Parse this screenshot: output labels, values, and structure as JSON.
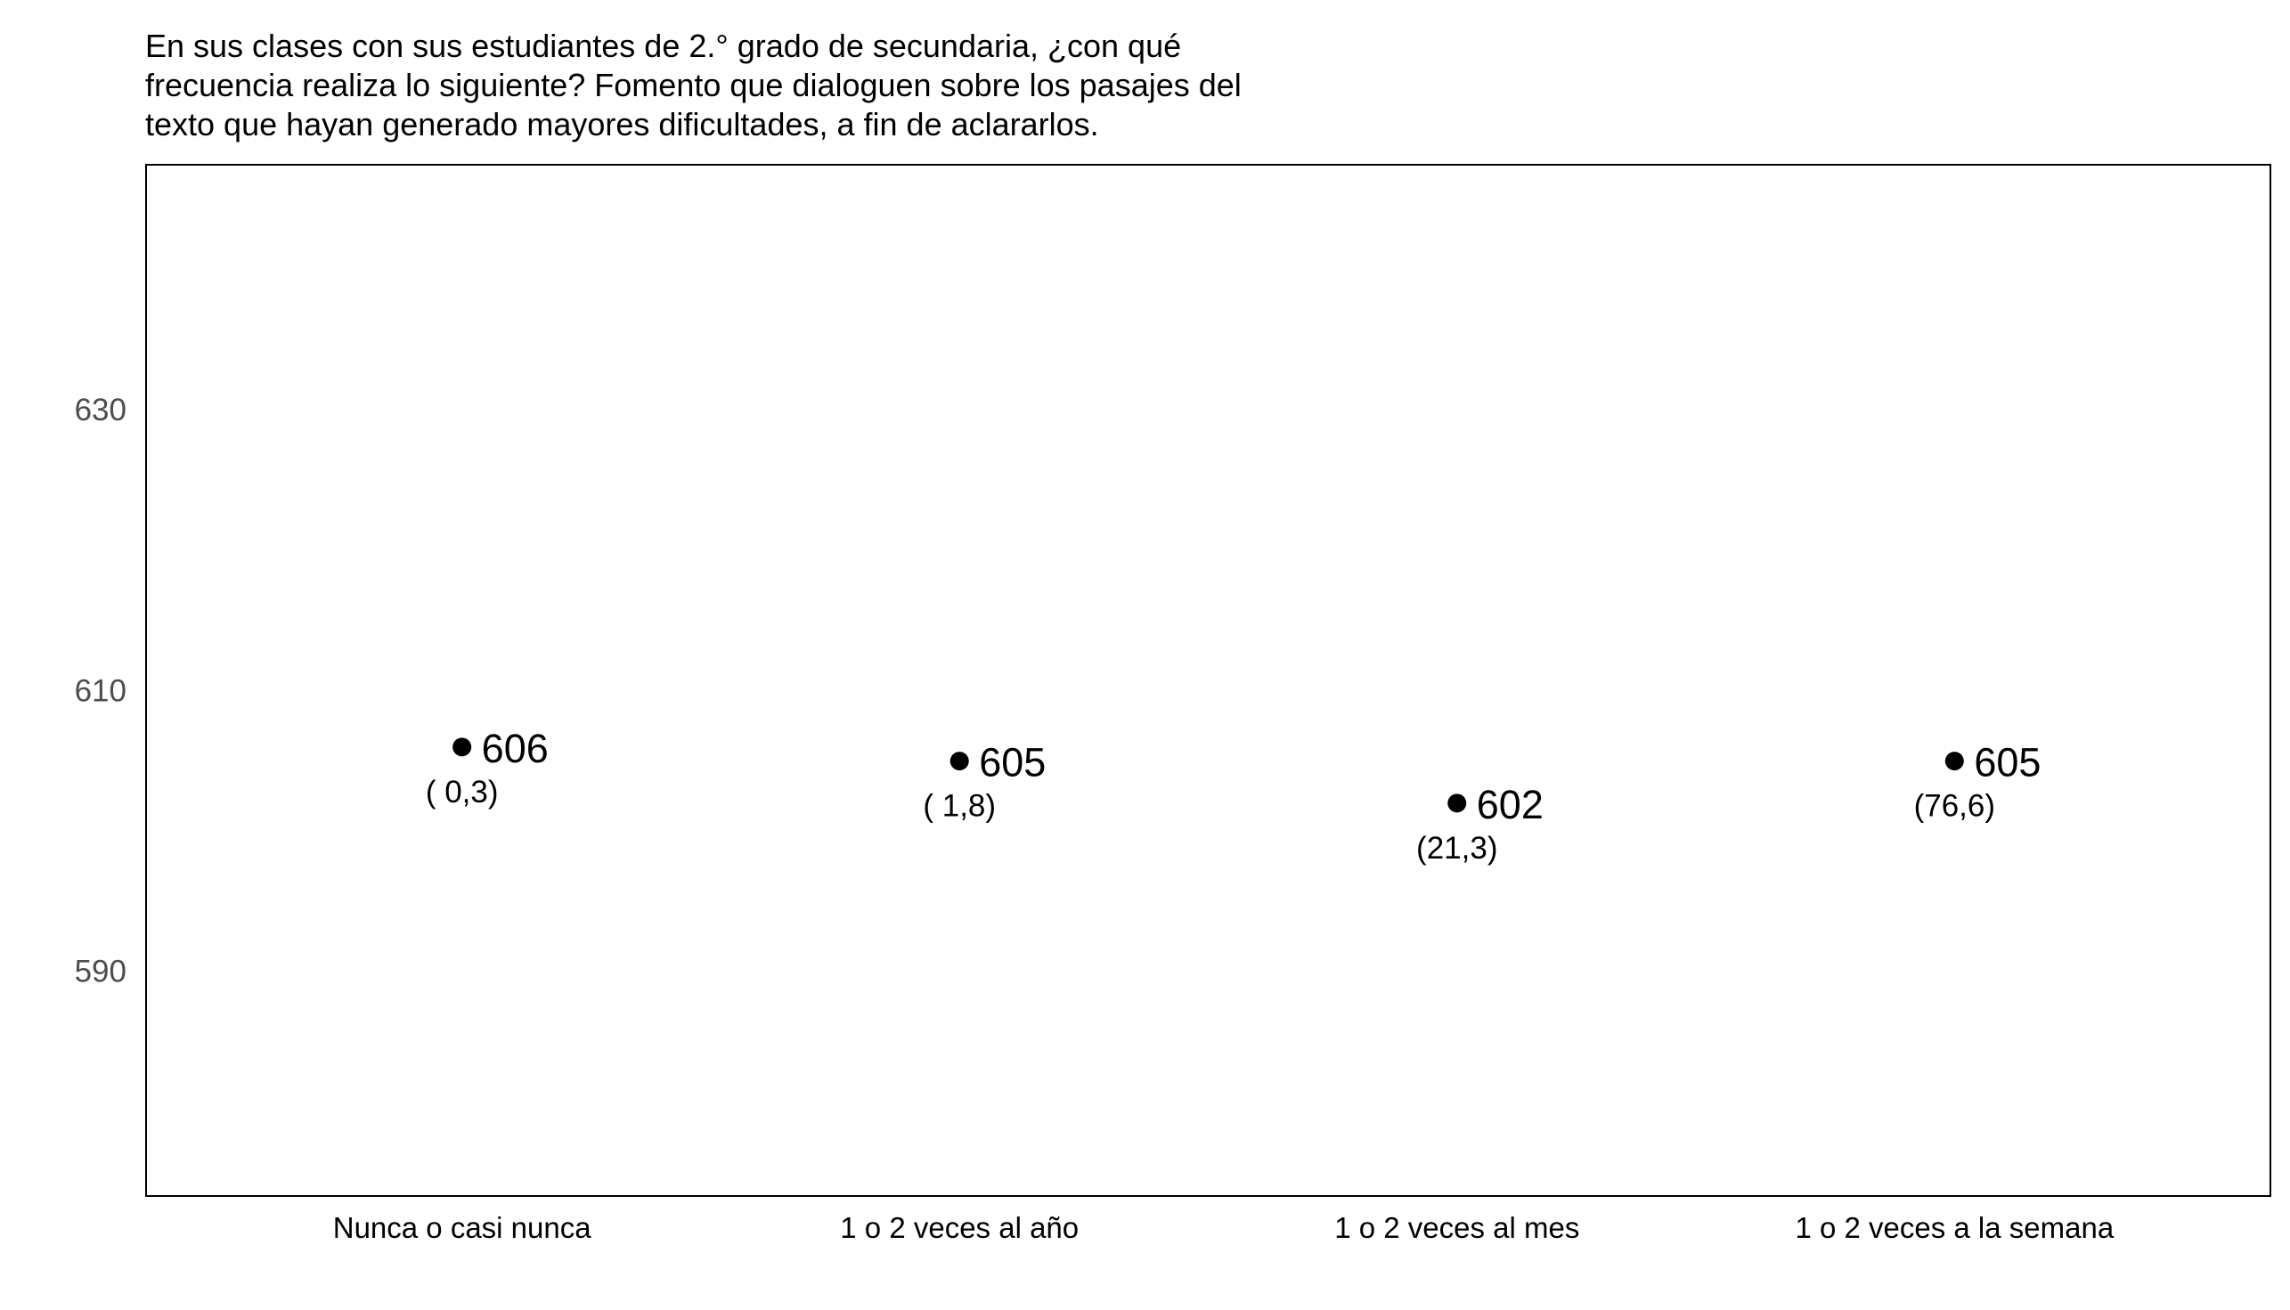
{
  "chart_data": {
    "type": "scatter",
    "title_lines": [
      "En sus clases con sus estudiantes de 2.° grado de secundaria, ¿con qué",
      "frecuencia realiza lo siguiente? Fomento que dialoguen sobre los pasajes del",
      "texto que hayan generado mayores dificultades, a fin de aclararlos."
    ],
    "categories": [
      "Nunca o casi nunca",
      "1 o 2 veces al año",
      "1 o 2 veces al mes",
      "1 o 2 veces a la semana"
    ],
    "values": [
      606,
      605,
      602,
      605
    ],
    "value_labels": [
      "606",
      "605",
      "602",
      "605"
    ],
    "percent_labels": [
      "( 0,3)",
      "( 1,8)",
      "(21,3)",
      "(76,6)"
    ],
    "y_ticks": [
      590,
      610,
      630
    ],
    "y_tick_labels": [
      "590",
      "610",
      "630"
    ],
    "ylim": [
      574,
      647.5
    ],
    "xlabel": "",
    "ylabel": "",
    "grid": false,
    "legend": "none",
    "colors": {
      "point": "#000000",
      "axis_text": "#4d4d4d",
      "frame": "#000000"
    }
  }
}
